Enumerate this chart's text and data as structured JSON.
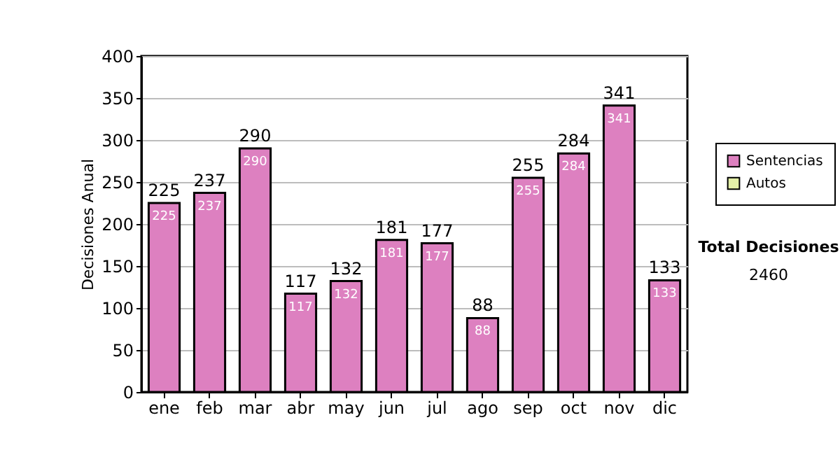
{
  "chart_data": {
    "type": "bar",
    "ylabel": "Decisiones Anual",
    "categories": [
      "ene",
      "feb",
      "mar",
      "abr",
      "may",
      "jun",
      "jul",
      "ago",
      "sep",
      "oct",
      "nov",
      "dic"
    ],
    "series": [
      {
        "name": "Sentencias",
        "color": "#dd80c0",
        "values": [
          225,
          237,
          290,
          117,
          132,
          181,
          177,
          88,
          255,
          284,
          341,
          133
        ]
      },
      {
        "name": "Autos",
        "color": "#e4f0a8",
        "values": [
          null,
          null,
          null,
          null,
          null,
          null,
          null,
          null,
          null,
          null,
          null,
          null
        ]
      }
    ],
    "stacked": true,
    "data_labels": true,
    "totals": [
      "225",
      "237",
      "290",
      "117",
      "132",
      "181",
      "177",
      "88",
      "255",
      "284",
      "341",
      "133"
    ],
    "ylim": [
      0,
      400
    ],
    "yticks": [
      0,
      50,
      100,
      150,
      200,
      250,
      300,
      350,
      400
    ],
    "grid": "y",
    "legend": "right",
    "annotations": [
      "Total Decisiones",
      "2460"
    ]
  }
}
